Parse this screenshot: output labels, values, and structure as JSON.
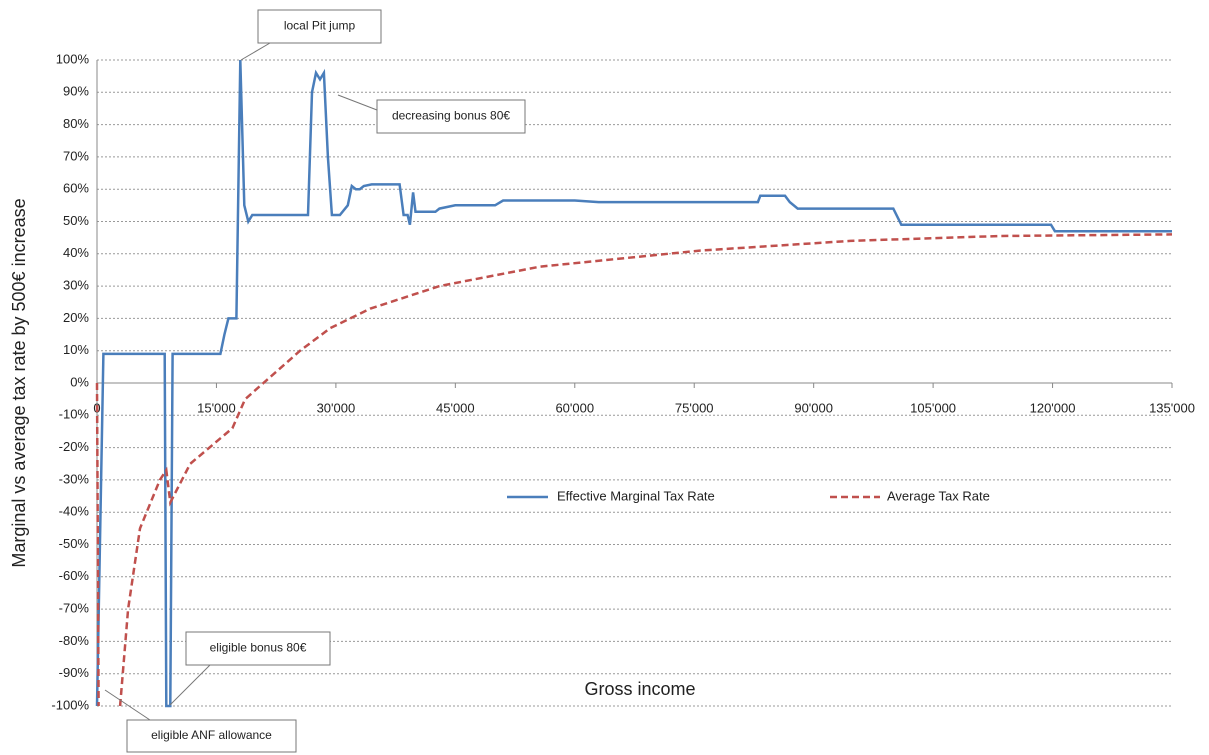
{
  "chart_data": {
    "type": "line",
    "y_label": "Marginal vs average tax rate by 500€ increase",
    "x_label": "Gross income",
    "xlim": [
      0,
      135000
    ],
    "ylim": [
      -100,
      100
    ],
    "xticks": [
      0,
      {
        "value": 15000,
        "label": "15'000"
      },
      {
        "value": 30000,
        "label": "30'000"
      },
      {
        "value": 45000,
        "label": "45'000"
      },
      {
        "value": 60000,
        "label": "60'000"
      },
      {
        "value": 75000,
        "label": "75'000"
      },
      {
        "value": 90000,
        "label": "90'000"
      },
      {
        "value": 105000,
        "label": "105'000"
      },
      {
        "value": 120000,
        "label": "120'000"
      },
      {
        "value": 135000,
        "label": "135'000"
      }
    ],
    "yticks": [
      {
        "value": 100,
        "label": "100%"
      },
      {
        "value": 90,
        "label": "90%"
      },
      {
        "value": 80,
        "label": "80%"
      },
      {
        "value": 70,
        "label": "70%"
      },
      {
        "value": 60,
        "label": "60%"
      },
      {
        "value": 50,
        "label": "50%"
      },
      {
        "value": 40,
        "label": "40%"
      },
      {
        "value": 30,
        "label": "30%"
      },
      {
        "value": 20,
        "label": "20%"
      },
      {
        "value": 10,
        "label": "10%"
      },
      {
        "value": 0,
        "label": "0%"
      },
      {
        "value": -10,
        "label": "-10%"
      },
      {
        "value": -20,
        "label": "-20%"
      },
      {
        "value": -30,
        "label": "-30%"
      },
      {
        "value": -40,
        "label": "-40%"
      },
      {
        "value": -50,
        "label": "-50%"
      },
      {
        "value": -60,
        "label": "-60%"
      },
      {
        "value": -70,
        "label": "-70%"
      },
      {
        "value": -80,
        "label": "-80%"
      },
      {
        "value": -90,
        "label": "-90%"
      },
      {
        "value": -100,
        "label": "-100%"
      }
    ],
    "grid": true,
    "legend": "center",
    "series": [
      {
        "name": "Effective Marginal Tax Rate",
        "color": "#4a7ebb",
        "style": "solid",
        "x": [
          0,
          800,
          8500,
          8700,
          9200,
          9500,
          15500,
          16000,
          16500,
          17500,
          18000,
          18500,
          19000,
          19500,
          26500,
          27000,
          27500,
          28000,
          28500,
          29000,
          29500,
          30500,
          31500,
          32000,
          32500,
          33000,
          33500,
          34500,
          38000,
          38500,
          39000,
          39300,
          39700,
          40000,
          42500,
          43000,
          45000,
          50000,
          51000,
          60000,
          63000,
          83000,
          83300,
          86400,
          87000,
          88000,
          100000,
          101000,
          119800,
          120300,
          135000
        ],
        "values": [
          -100,
          9,
          9,
          -100,
          -100,
          9,
          9,
          15,
          20,
          20,
          100,
          55,
          50,
          52,
          52,
          90,
          96,
          94,
          96,
          70,
          52,
          52,
          55,
          61,
          60,
          60,
          61,
          61.5,
          61.5,
          52,
          52,
          49,
          59,
          53,
          53,
          54,
          55,
          55,
          56.5,
          56.5,
          56,
          56,
          58,
          58,
          56,
          54,
          54,
          49,
          49,
          47,
          47
        ]
      },
      {
        "name": "Average Tax Rate",
        "color": "#c0504d",
        "style": "dashed",
        "x": [
          0,
          200,
          1000,
          2900,
          3900,
          5400,
          7900,
          8700,
          9200,
          11700,
          17000,
          18600,
          25500,
          29300,
          34300,
          43000,
          55600,
          75700,
          94600,
          113400,
          135000
        ],
        "values": [
          0,
          -100,
          null,
          -100,
          -70,
          -45,
          -30,
          -27,
          -37,
          -25,
          -14,
          -5,
          10,
          17,
          23,
          30,
          36,
          41,
          44,
          45.5,
          46
        ]
      }
    ],
    "annotations": [
      "local Pit jump",
      "decreasing bonus 80€",
      "eligible bonus 80€",
      "eligible ANF allowance"
    ]
  }
}
